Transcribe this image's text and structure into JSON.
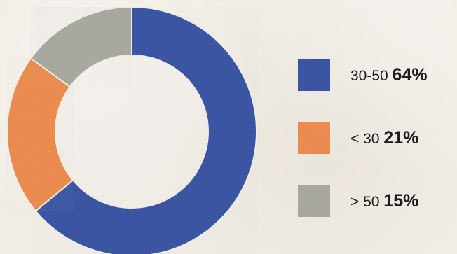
{
  "chart_data": {
    "type": "pie",
    "donut": true,
    "legend_position": "right",
    "slices": [
      {
        "label": "30-50",
        "value": 64,
        "value_label": "64%",
        "color": "#3a56a3"
      },
      {
        "label": "< 30",
        "value": 21,
        "value_label": "21%",
        "color": "#eb8d4f"
      },
      {
        "label": "> 50",
        "value": 15,
        "value_label": "15%",
        "color": "#a8aaa1"
      }
    ],
    "background_color": "#f1ede6"
  }
}
